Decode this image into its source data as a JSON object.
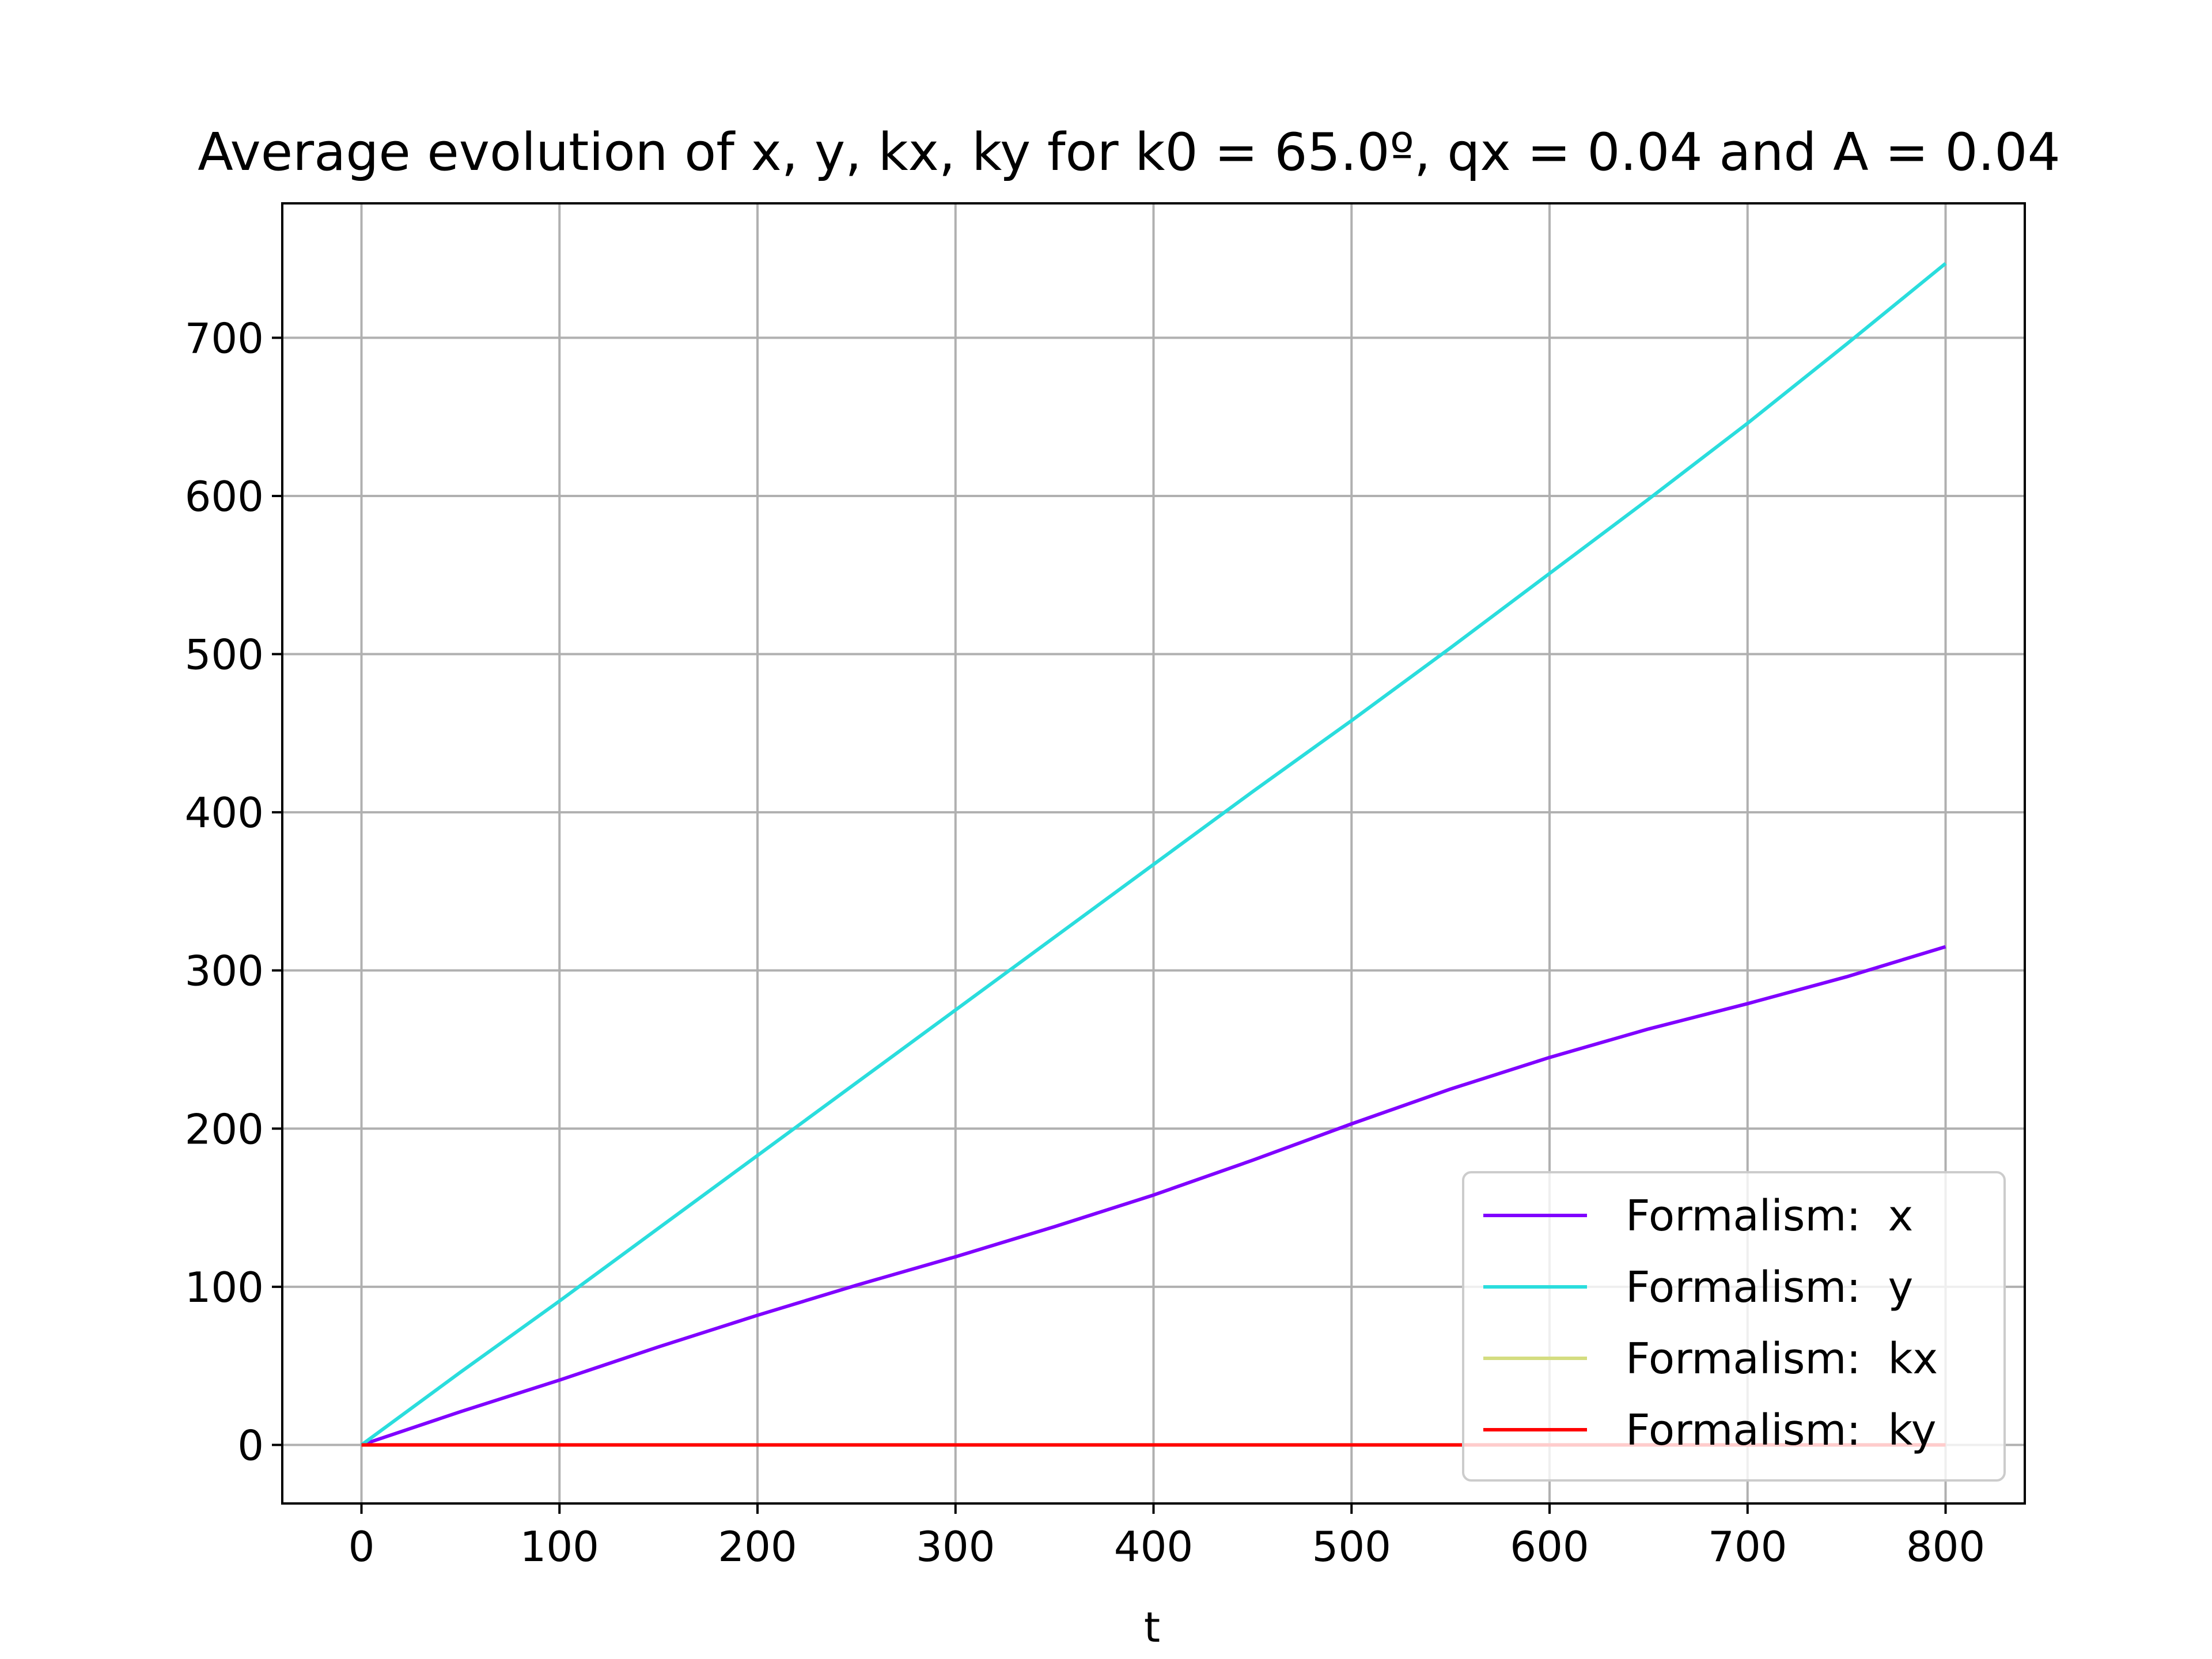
{
  "chart_data": {
    "type": "line",
    "title": "Average evolution of x, y, kx, ky for k0 = 65.0º, qx = 0.04 and A = 0.04",
    "xlabel": "t",
    "ylabel": "",
    "xlim": [
      -40,
      840
    ],
    "ylim": [
      -37,
      785
    ],
    "xticks": [
      0,
      100,
      200,
      300,
      400,
      500,
      600,
      700,
      800
    ],
    "xtick_labels": [
      "0",
      "100",
      "200",
      "300",
      "400",
      "500",
      "600",
      "700",
      "800"
    ],
    "yticks": [
      0,
      100,
      200,
      300,
      400,
      500,
      600,
      700
    ],
    "ytick_labels": [
      "0",
      "100",
      "200",
      "300",
      "400",
      "500",
      "600",
      "700"
    ],
    "grid": true,
    "legend_position": "lower-right",
    "x": [
      0,
      50,
      100,
      150,
      200,
      250,
      300,
      350,
      400,
      450,
      500,
      550,
      600,
      650,
      700,
      750,
      800
    ],
    "series": [
      {
        "name": "Formalism:  x",
        "color": "#8000ff",
        "values": [
          0,
          21,
          41,
          62,
          82,
          101,
          119,
          138,
          158,
          180,
          203,
          225,
          245,
          263,
          279,
          296,
          315
        ]
      },
      {
        "name": "Formalism:  y",
        "color": "#2adddd",
        "values": [
          0,
          46,
          91,
          137,
          183,
          229,
          275,
          321,
          367,
          413,
          458,
          504,
          551,
          598,
          646,
          696,
          747
        ]
      },
      {
        "name": "Formalism:  kx",
        "color": "#d4dd80",
        "values": [
          0,
          0,
          0,
          0,
          0,
          0,
          0,
          0,
          0,
          0,
          0,
          0,
          0,
          0,
          0,
          0,
          0
        ]
      },
      {
        "name": "Formalism:  ky",
        "color": "#ff0000",
        "values": [
          0,
          0,
          0,
          0,
          0,
          0,
          0,
          0,
          0,
          0,
          0,
          0,
          0,
          0,
          0,
          0,
          0
        ]
      }
    ]
  }
}
